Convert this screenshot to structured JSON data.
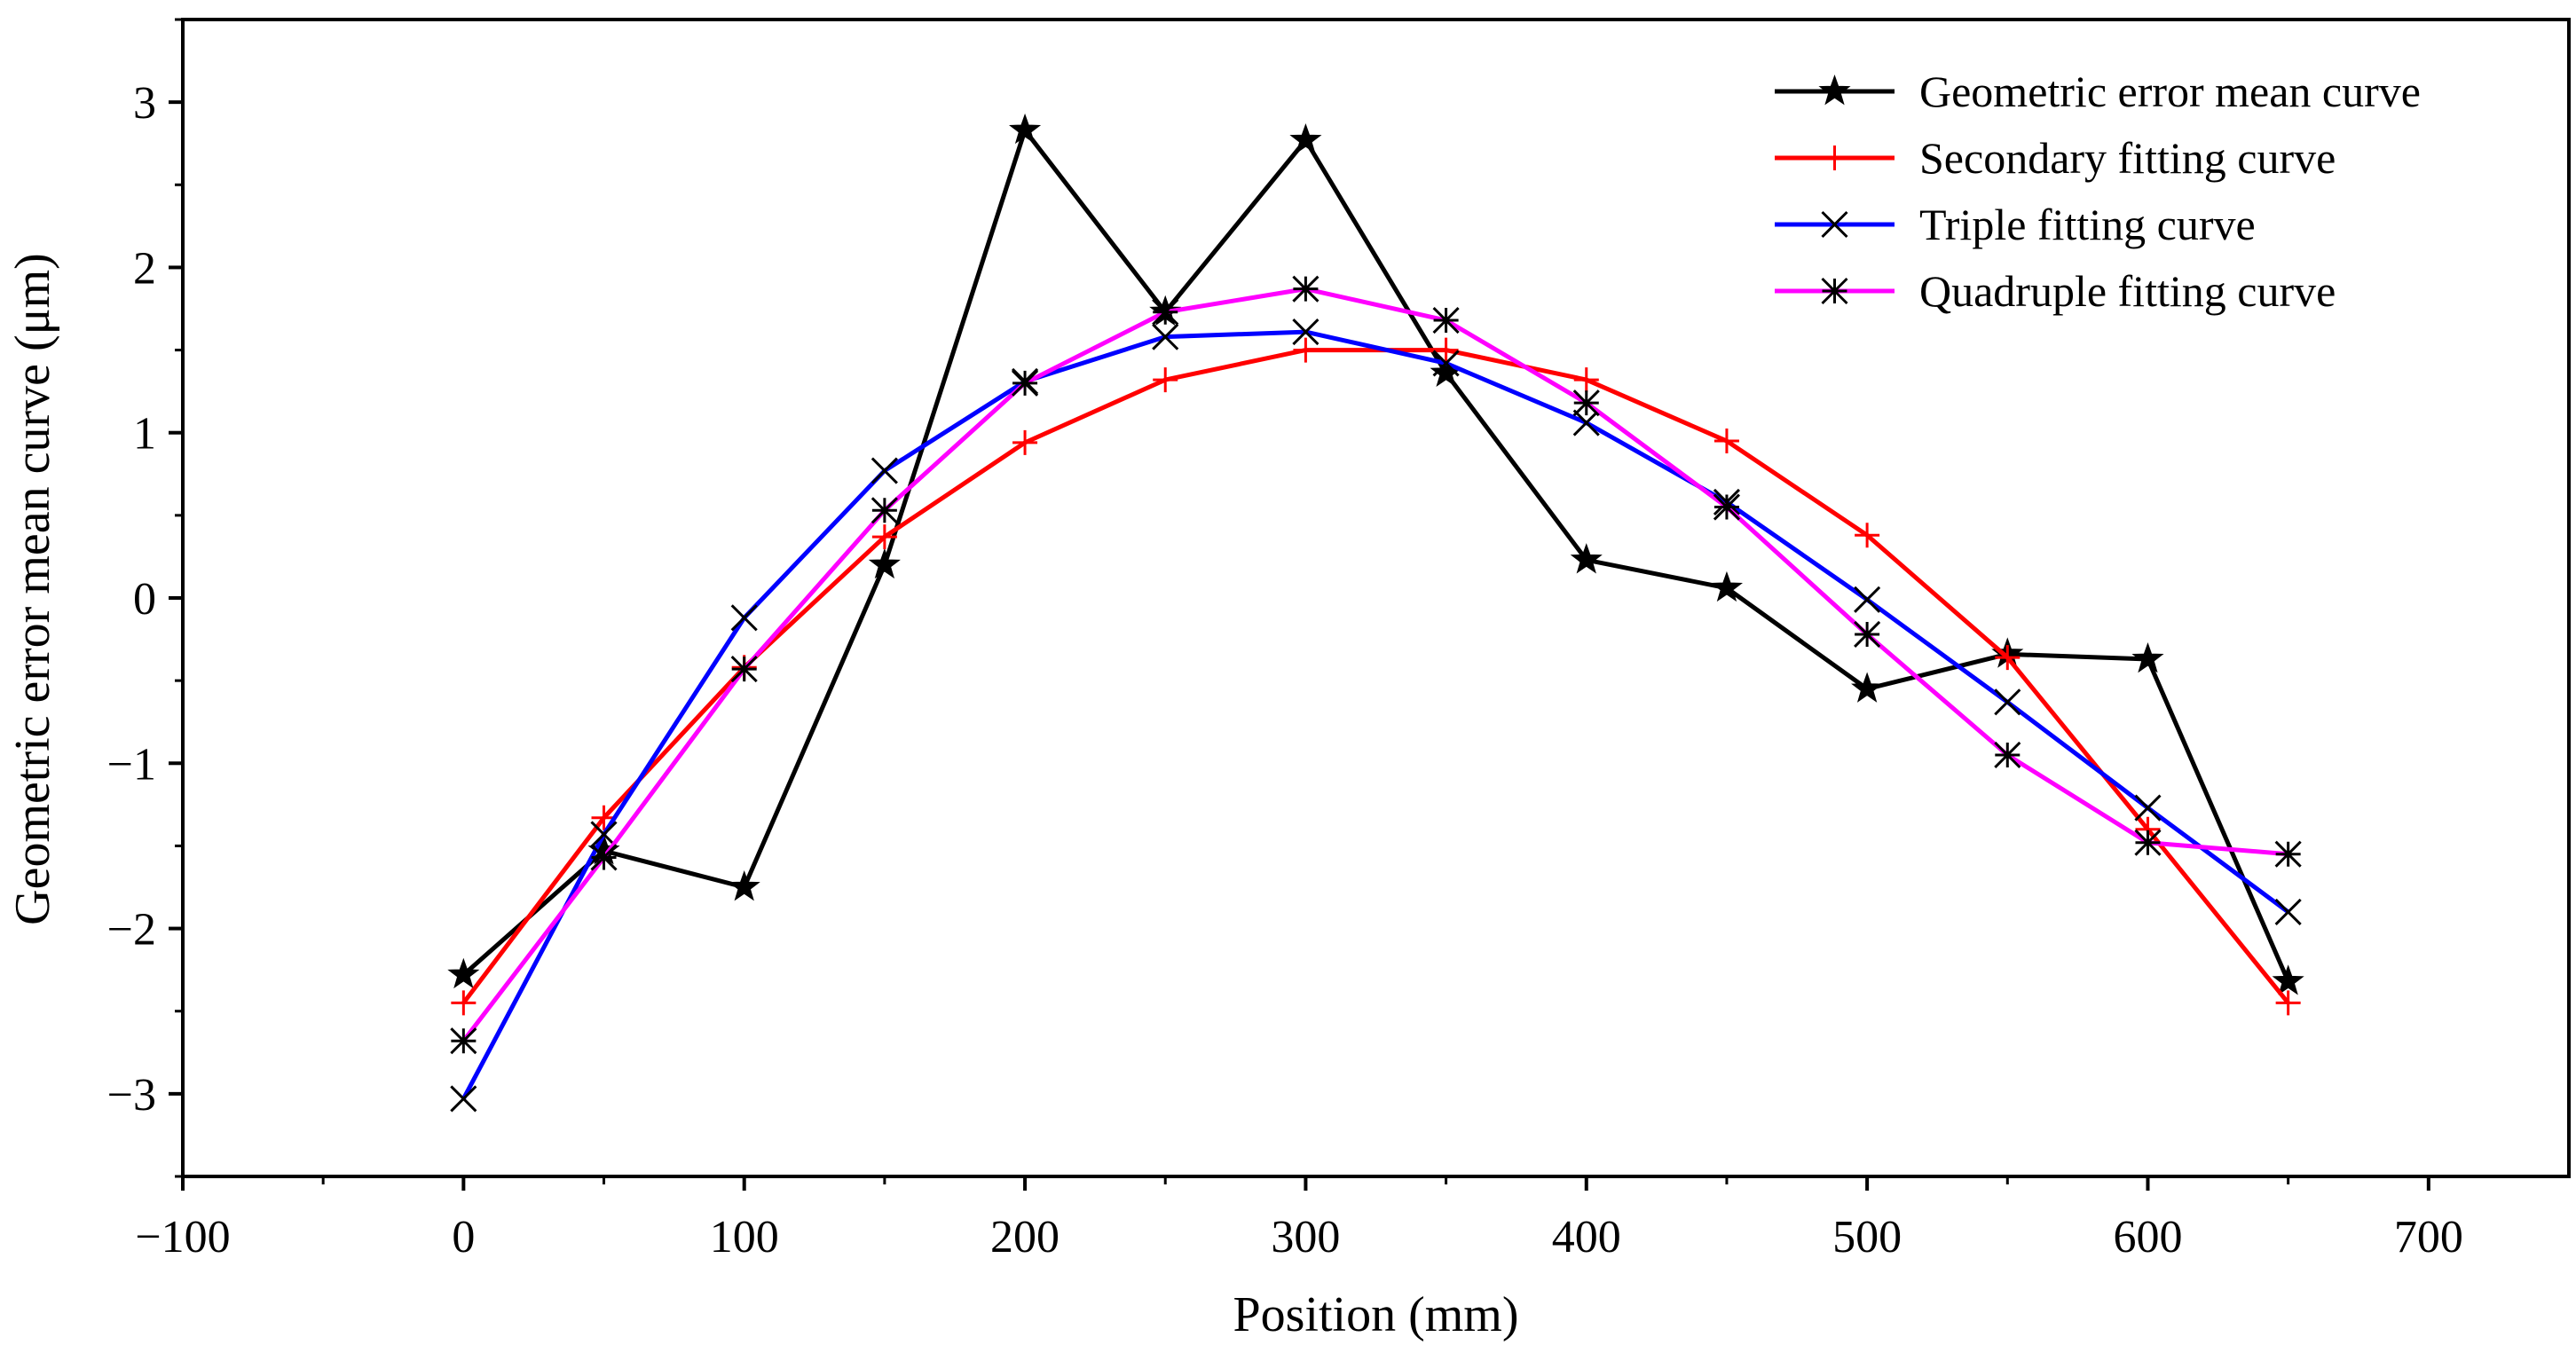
{
  "chart_data": {
    "type": "line",
    "title": "",
    "xlabel": "Position (mm)",
    "ylabel": "Geometric error mean curve (μm)",
    "xlim": [
      -100,
      750
    ],
    "ylim": [
      -3.5,
      3.5
    ],
    "xticks": [
      -100,
      0,
      100,
      200,
      300,
      400,
      500,
      600,
      700
    ],
    "xtick_labels": [
      "−100",
      "0",
      "100",
      "200",
      "300",
      "400",
      "500",
      "600",
      "700"
    ],
    "yticks": [
      -3,
      -2,
      -1,
      0,
      1,
      2,
      3
    ],
    "ytick_labels": [
      "−3",
      "−2",
      "−1",
      "0",
      "1",
      "2",
      "3"
    ],
    "x": [
      0,
      50,
      100,
      150,
      200,
      250,
      300,
      350,
      400,
      450,
      500,
      550,
      600,
      650
    ],
    "series": [
      {
        "name": "Geometric error mean curve",
        "color": "#000000",
        "marker": "star",
        "values": [
          -2.28,
          -1.53,
          -1.75,
          0.2,
          2.83,
          1.73,
          2.77,
          1.36,
          0.23,
          0.06,
          -0.55,
          -0.34,
          -0.37,
          -2.32
        ]
      },
      {
        "name": "Secondary fitting curve",
        "color": "#ff0000",
        "marker": "plus",
        "values": [
          -2.45,
          -1.33,
          -0.42,
          0.37,
          0.94,
          1.32,
          1.5,
          1.5,
          1.32,
          0.95,
          0.38,
          -0.36,
          -1.4,
          -2.45
        ]
      },
      {
        "name": "Triple fitting curve",
        "color": "#0000ff",
        "marker": "x",
        "values": [
          -3.03,
          -1.43,
          -0.12,
          0.77,
          1.31,
          1.58,
          1.61,
          1.42,
          1.06,
          0.58,
          -0.01,
          -0.63,
          -1.27,
          -1.9
        ]
      },
      {
        "name": "Quadruple fitting curve",
        "color": "#ff00ff",
        "marker": "asterisk",
        "values": [
          -2.68,
          -1.57,
          -0.43,
          0.53,
          1.3,
          1.73,
          1.87,
          1.68,
          1.18,
          0.55,
          -0.22,
          -0.95,
          -1.48,
          -1.55
        ]
      }
    ],
    "legend": "top-right"
  }
}
